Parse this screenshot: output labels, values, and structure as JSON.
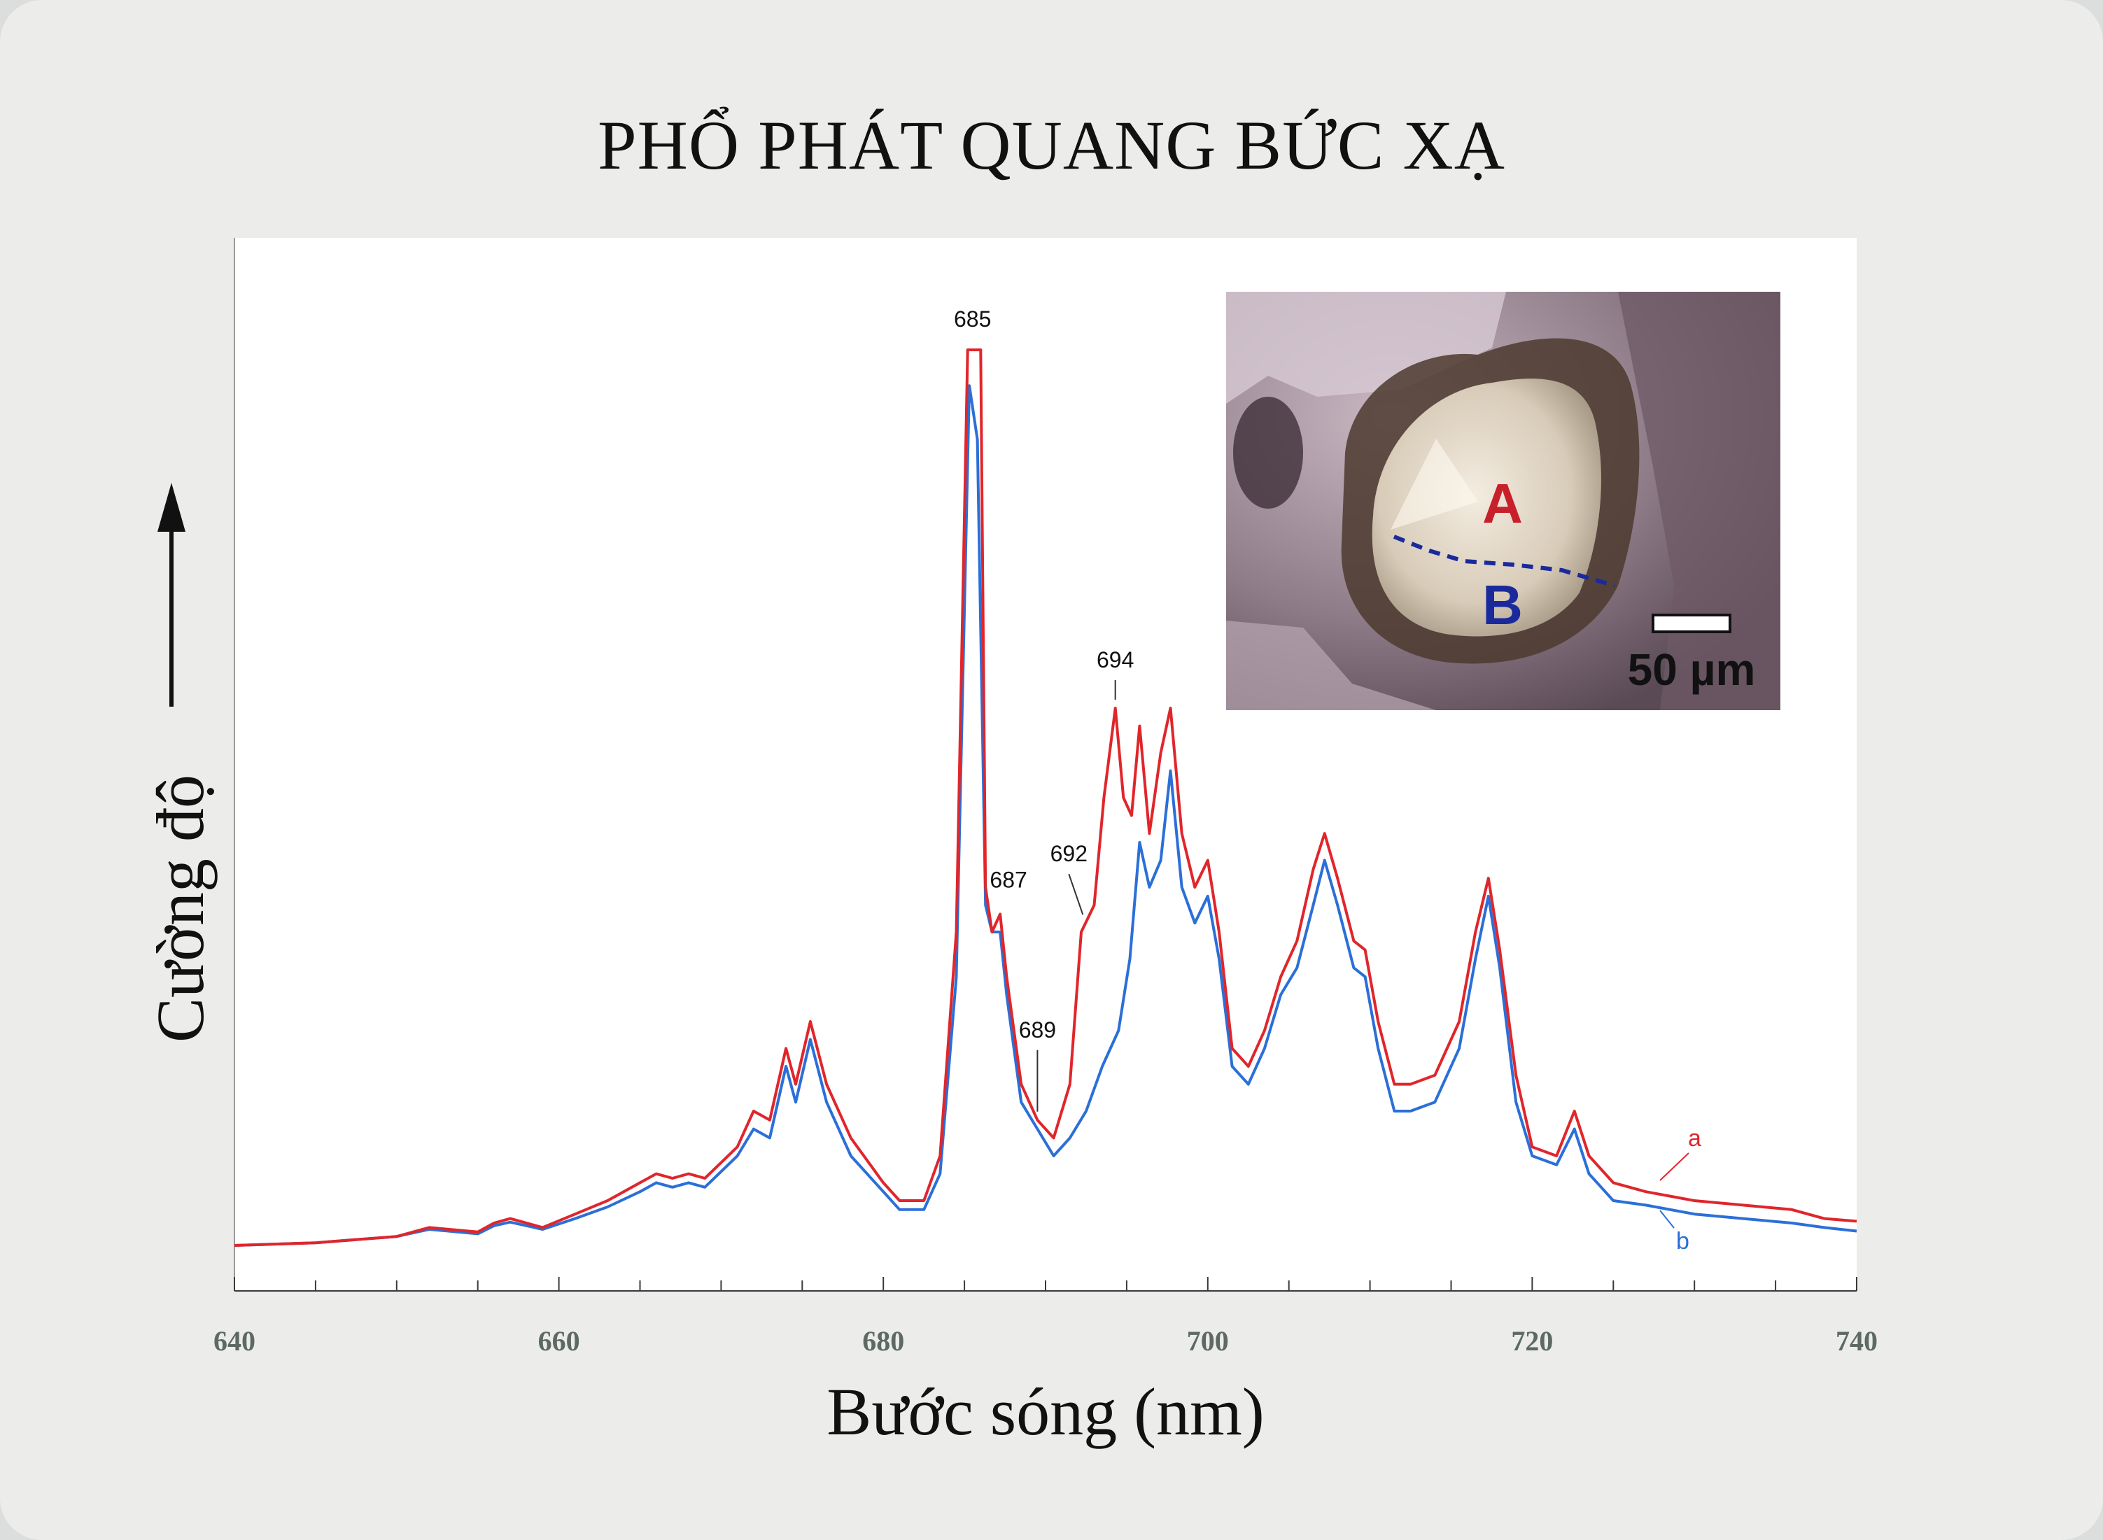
{
  "chart_data": {
    "type": "line",
    "title": "PHỔ PHÁT QUANG BỨC XẠ",
    "xlabel": "Bước sóng (nm)",
    "ylabel": "Cường độ",
    "xlim": [
      640,
      740
    ],
    "ylim": [
      0,
      1
    ],
    "x_ticks": [
      640,
      660,
      680,
      700,
      720,
      740
    ],
    "grid": false,
    "series": [
      {
        "name": "a",
        "color": "#e0262b",
        "points": [
          [
            640,
            0.0
          ],
          [
            645,
            0.003
          ],
          [
            650,
            0.01
          ],
          [
            652,
            0.02
          ],
          [
            655,
            0.015
          ],
          [
            656,
            0.025
          ],
          [
            657,
            0.03
          ],
          [
            659,
            0.02
          ],
          [
            661,
            0.035
          ],
          [
            663,
            0.05
          ],
          [
            665,
            0.07
          ],
          [
            666,
            0.08
          ],
          [
            667,
            0.075
          ],
          [
            668,
            0.08
          ],
          [
            669,
            0.075
          ],
          [
            671,
            0.11
          ],
          [
            672,
            0.15
          ],
          [
            673,
            0.14
          ],
          [
            674,
            0.22
          ],
          [
            674.6,
            0.18
          ],
          [
            675.5,
            0.25
          ],
          [
            676.5,
            0.18
          ],
          [
            678,
            0.12
          ],
          [
            680,
            0.07
          ],
          [
            681,
            0.05
          ],
          [
            682.5,
            0.05
          ],
          [
            683.5,
            0.1
          ],
          [
            684.5,
            0.35
          ],
          [
            685.2,
            1.0
          ],
          [
            686,
            1.0
          ],
          [
            686.3,
            0.4
          ],
          [
            686.7,
            0.35
          ],
          [
            687.2,
            0.37
          ],
          [
            687.6,
            0.3
          ],
          [
            688.5,
            0.18
          ],
          [
            689.5,
            0.14
          ],
          [
            690.5,
            0.12
          ],
          [
            691.5,
            0.18
          ],
          [
            692.2,
            0.35
          ],
          [
            693,
            0.38
          ],
          [
            693.6,
            0.5
          ],
          [
            694.3,
            0.6
          ],
          [
            694.8,
            0.5
          ],
          [
            695.3,
            0.48
          ],
          [
            695.8,
            0.58
          ],
          [
            696.4,
            0.46
          ],
          [
            697.1,
            0.55
          ],
          [
            697.7,
            0.6
          ],
          [
            698.4,
            0.46
          ],
          [
            699.2,
            0.4
          ],
          [
            700,
            0.43
          ],
          [
            700.7,
            0.35
          ],
          [
            701.5,
            0.22
          ],
          [
            702.5,
            0.2
          ],
          [
            703.5,
            0.24
          ],
          [
            704.5,
            0.3
          ],
          [
            705.5,
            0.34
          ],
          [
            706.5,
            0.42
          ],
          [
            707.2,
            0.46
          ],
          [
            708,
            0.41
          ],
          [
            709,
            0.34
          ],
          [
            709.7,
            0.33
          ],
          [
            710.5,
            0.25
          ],
          [
            711.5,
            0.18
          ],
          [
            712.5,
            0.18
          ],
          [
            714,
            0.19
          ],
          [
            715.5,
            0.25
          ],
          [
            716.5,
            0.35
          ],
          [
            717.3,
            0.41
          ],
          [
            718,
            0.33
          ],
          [
            719,
            0.19
          ],
          [
            720,
            0.11
          ],
          [
            721.5,
            0.1
          ],
          [
            722.6,
            0.15
          ],
          [
            723.5,
            0.1
          ],
          [
            725,
            0.07
          ],
          [
            727,
            0.06
          ],
          [
            730,
            0.05
          ],
          [
            733,
            0.045
          ],
          [
            736,
            0.04
          ],
          [
            738,
            0.03
          ],
          [
            740,
            0.027
          ]
        ]
      },
      {
        "name": "b",
        "color": "#2b6fd8",
        "points": [
          [
            640,
            0.0
          ],
          [
            645,
            0.003
          ],
          [
            650,
            0.01
          ],
          [
            652,
            0.018
          ],
          [
            655,
            0.013
          ],
          [
            656,
            0.022
          ],
          [
            657,
            0.026
          ],
          [
            659,
            0.018
          ],
          [
            661,
            0.03
          ],
          [
            663,
            0.043
          ],
          [
            665,
            0.06
          ],
          [
            666,
            0.07
          ],
          [
            667,
            0.065
          ],
          [
            668,
            0.07
          ],
          [
            669,
            0.065
          ],
          [
            671,
            0.1
          ],
          [
            672,
            0.13
          ],
          [
            673,
            0.12
          ],
          [
            674,
            0.2
          ],
          [
            674.6,
            0.16
          ],
          [
            675.5,
            0.23
          ],
          [
            676.5,
            0.16
          ],
          [
            678,
            0.1
          ],
          [
            680,
            0.06
          ],
          [
            681,
            0.04
          ],
          [
            682.5,
            0.04
          ],
          [
            683.5,
            0.08
          ],
          [
            684.5,
            0.3
          ],
          [
            685.3,
            0.96
          ],
          [
            685.8,
            0.9
          ],
          [
            686.3,
            0.38
          ],
          [
            686.7,
            0.35
          ],
          [
            687.2,
            0.35
          ],
          [
            687.6,
            0.28
          ],
          [
            688.5,
            0.16
          ],
          [
            689.5,
            0.13
          ],
          [
            690.5,
            0.1
          ],
          [
            691.5,
            0.12
          ],
          [
            692.5,
            0.15
          ],
          [
            693.5,
            0.2
          ],
          [
            694.5,
            0.24
          ],
          [
            695.2,
            0.32
          ],
          [
            695.8,
            0.45
          ],
          [
            696.4,
            0.4
          ],
          [
            697.1,
            0.43
          ],
          [
            697.7,
            0.53
          ],
          [
            698.4,
            0.4
          ],
          [
            699.2,
            0.36
          ],
          [
            700,
            0.39
          ],
          [
            700.7,
            0.32
          ],
          [
            701.5,
            0.2
          ],
          [
            702.5,
            0.18
          ],
          [
            703.5,
            0.22
          ],
          [
            704.5,
            0.28
          ],
          [
            705.5,
            0.31
          ],
          [
            706.5,
            0.38
          ],
          [
            707.2,
            0.43
          ],
          [
            708,
            0.38
          ],
          [
            709,
            0.31
          ],
          [
            709.7,
            0.3
          ],
          [
            710.5,
            0.22
          ],
          [
            711.5,
            0.15
          ],
          [
            712.5,
            0.15
          ],
          [
            714,
            0.16
          ],
          [
            715.5,
            0.22
          ],
          [
            716.5,
            0.32
          ],
          [
            717.3,
            0.39
          ],
          [
            718,
            0.31
          ],
          [
            719,
            0.16
          ],
          [
            720,
            0.1
          ],
          [
            721.5,
            0.09
          ],
          [
            722.6,
            0.13
          ],
          [
            723.5,
            0.08
          ],
          [
            725,
            0.05
          ],
          [
            727,
            0.045
          ],
          [
            730,
            0.035
          ],
          [
            733,
            0.03
          ],
          [
            736,
            0.025
          ],
          [
            738,
            0.02
          ],
          [
            740,
            0.016
          ]
        ]
      }
    ],
    "annotations": [
      {
        "label": "685",
        "x": 685.5,
        "y": 1.0
      },
      {
        "label": "687",
        "x": 687.2,
        "y": 0.37
      },
      {
        "label": "689",
        "x": 689.5,
        "y": 0.14
      },
      {
        "label": "692",
        "x": 692.3,
        "y": 0.36
      },
      {
        "label": "694",
        "x": 694.3,
        "y": 0.6
      }
    ]
  },
  "inset": {
    "region_a_label": "A",
    "region_b_label": "B",
    "scale_bar_label": "50 µm",
    "region_a_color": "#c8202a",
    "region_b_color": "#1a2a9c"
  }
}
